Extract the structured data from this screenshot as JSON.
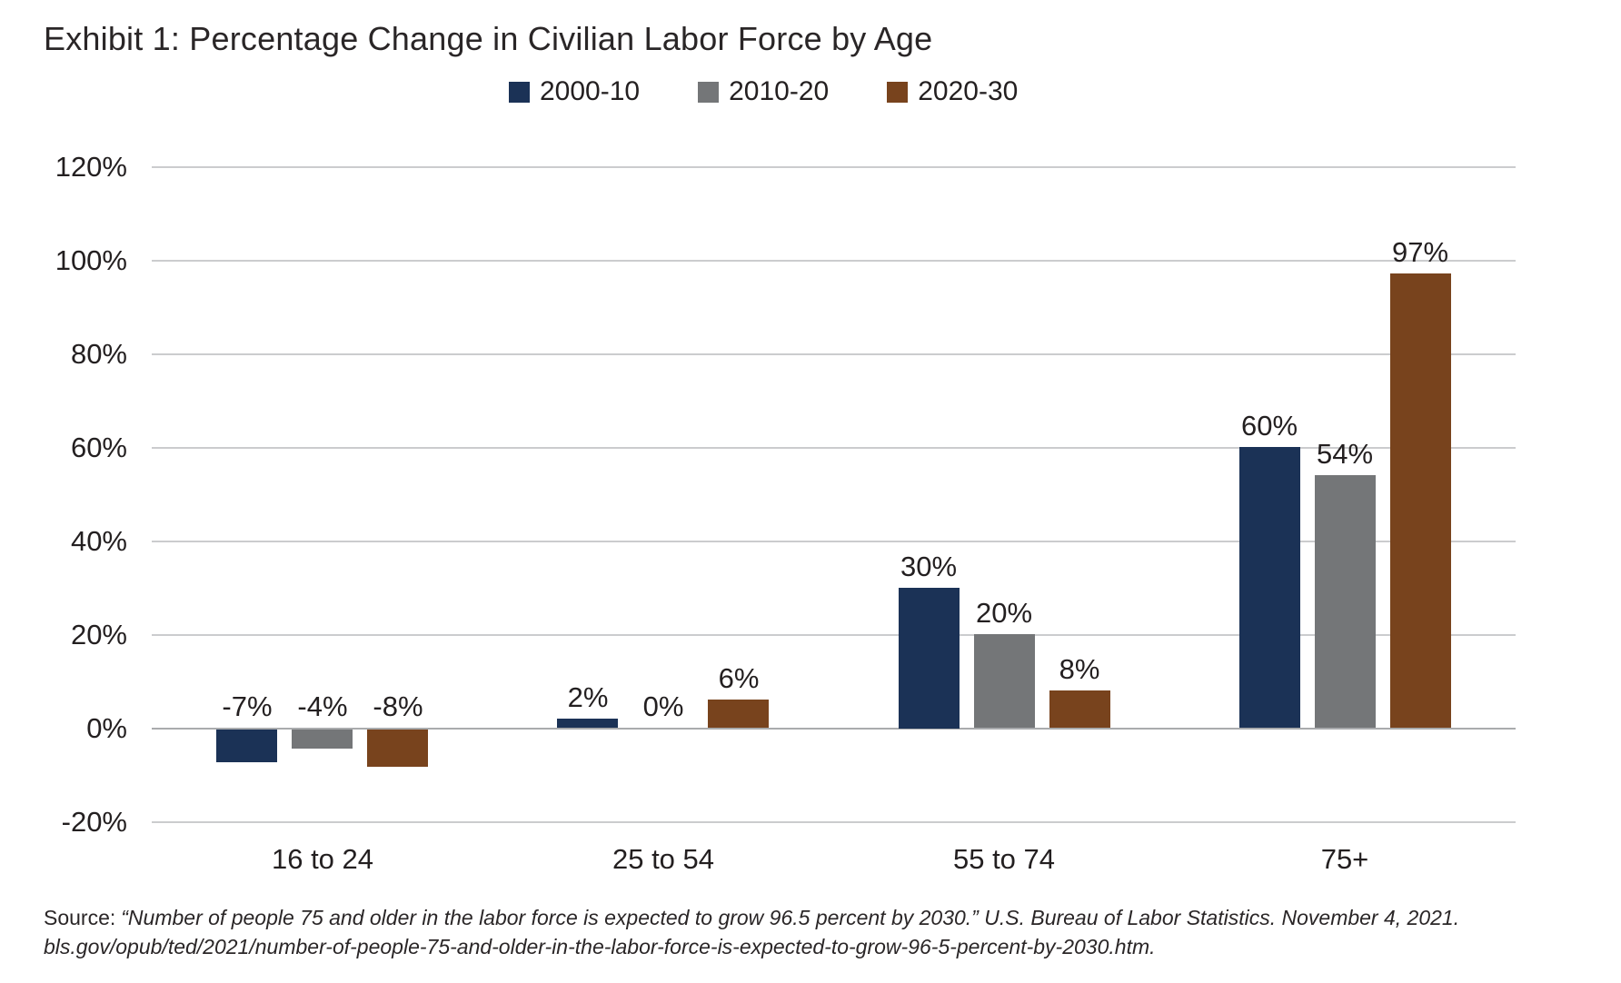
{
  "header": {
    "title": "Exhibit 1: Percentage Change in Civilian Labor Force by Age"
  },
  "legend": {
    "items": [
      {
        "label": "2000-10",
        "color": "#1b3256"
      },
      {
        "label": "2010-20",
        "color": "#747678"
      },
      {
        "label": "2020-30",
        "color": "#78431d"
      }
    ]
  },
  "chart_data": {
    "type": "bar",
    "title": "Exhibit 1: Percentage Change in Civilian Labor Force by Age",
    "categories": [
      "16 to 24",
      "25 to 54",
      "55 to 74",
      "75+"
    ],
    "series": [
      {
        "name": "2000-10",
        "color": "#1b3256",
        "values": [
          -7,
          2,
          30,
          60
        ]
      },
      {
        "name": "2010-20",
        "color": "#747678",
        "values": [
          -4,
          0,
          20,
          54
        ]
      },
      {
        "name": "2020-30",
        "color": "#78431d",
        "values": [
          -8,
          6,
          8,
          97
        ]
      }
    ],
    "value_label_suffix": "%",
    "xlabel": "",
    "ylabel": "",
    "ylim": [
      -20,
      120
    ],
    "ytick_step": 20,
    "ytick_labels": [
      "120%",
      "100%",
      "80%",
      "60%",
      "40%",
      "20%",
      "0%",
      "-20%"
    ],
    "grid": "horizontal",
    "legend_position": "top"
  },
  "footer": {
    "source_prefix": "Source:",
    "source_line1": "“Number of people 75 and older in the labor force is expected to grow 96.5 percent by 2030.” U.S. Bureau of Labor Statistics. November 4, 2021.",
    "source_line2": "bls.gov/opub/ted/2021/number-of-people-75-and-older-in-the-labor-force-is-expected-to-grow-96-5-percent-by-2030.htm."
  }
}
